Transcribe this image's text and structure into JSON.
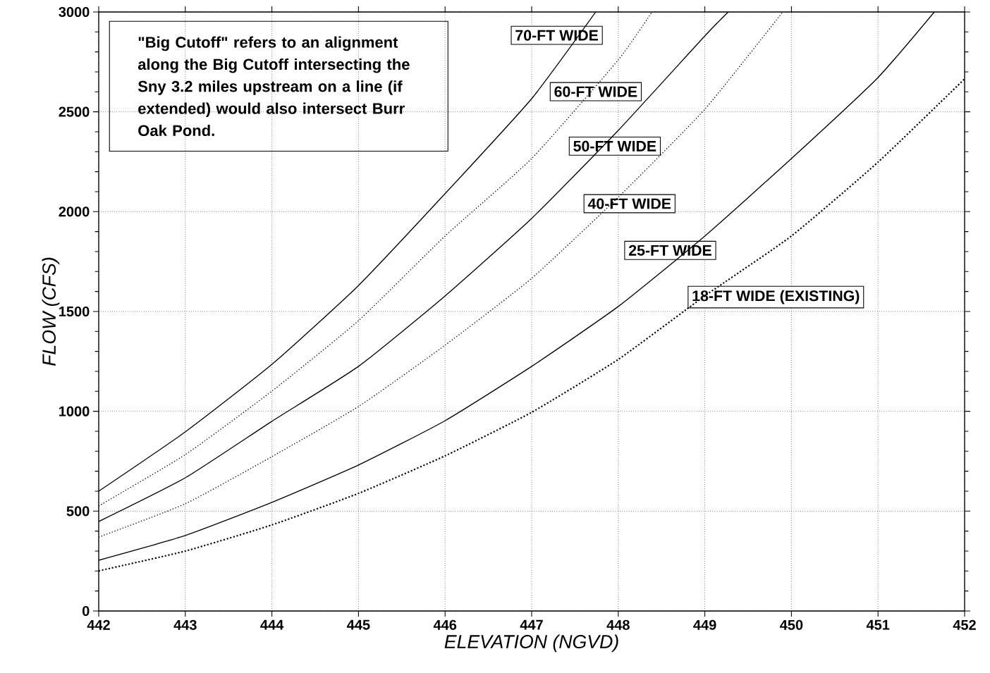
{
  "chart_data": {
    "type": "line",
    "xlabel": "ELEVATION  (NGVD)",
    "ylabel": "FLOW (CFS)",
    "xlim": [
      442,
      452
    ],
    "ylim": [
      0,
      3000
    ],
    "xticks": [
      442,
      443,
      444,
      445,
      446,
      447,
      448,
      449,
      450,
      451,
      452
    ],
    "yticks": [
      0,
      500,
      1000,
      1500,
      2000,
      2500,
      3000
    ],
    "grid": true,
    "legend": false,
    "marker": "none",
    "annotations": [
      "\"Big Cutoff\" refers to an alignment along the Big Cutoff intersecting the Sny 3.2 miles upstream on a line (if extended) would also intersect Burr Oak Pond."
    ],
    "series": [
      {
        "name": "70-FT WIDE",
        "color": "#000000",
        "line_style": "solid",
        "x": [
          442,
          443,
          444,
          445,
          446,
          447,
          447.74
        ],
        "values": [
          600,
          897,
          1235,
          1630,
          2090,
          2566,
          3000
        ]
      },
      {
        "name": "60-FT WIDE",
        "color": "#000000",
        "line_style": "dotted",
        "x": [
          442,
          443,
          444,
          445,
          446,
          447,
          448,
          448.39
        ],
        "values": [
          526,
          783,
          1101,
          1454,
          1878,
          2266,
          2760,
          3000
        ]
      },
      {
        "name": "50-FT WIDE",
        "color": "#000000",
        "line_style": "solid",
        "x": [
          442,
          443,
          444,
          445,
          446,
          447,
          448,
          449,
          449.27
        ],
        "values": [
          448,
          667,
          950,
          1225,
          1578,
          1966,
          2407,
          2880,
          3000
        ]
      },
      {
        "name": "40-FT WIDE",
        "color": "#000000",
        "line_style": "dotted",
        "x": [
          442,
          443,
          444,
          445,
          446,
          447,
          448,
          449,
          449.9
        ],
        "values": [
          370,
          537,
          773,
          1024,
          1331,
          1666,
          2072,
          2513,
          3000
        ]
      },
      {
        "name": "25-FT WIDE",
        "color": "#000000",
        "line_style": "solid",
        "x": [
          442,
          443,
          444,
          445,
          446,
          447,
          448,
          449,
          450,
          451,
          451.65
        ],
        "values": [
          254,
          378,
          544,
          731,
          953,
          1225,
          1525,
          1878,
          2266,
          2672,
          3000
        ]
      },
      {
        "name": "18-FT WIDE (EXISTING)",
        "color": "#000000",
        "line_style": "dotted",
        "x": [
          442,
          443,
          444,
          445,
          446,
          447,
          448,
          449,
          450,
          451,
          452
        ],
        "values": [
          201,
          300,
          431,
          589,
          777,
          995,
          1260,
          1578,
          1878,
          2248,
          2665
        ]
      }
    ]
  }
}
